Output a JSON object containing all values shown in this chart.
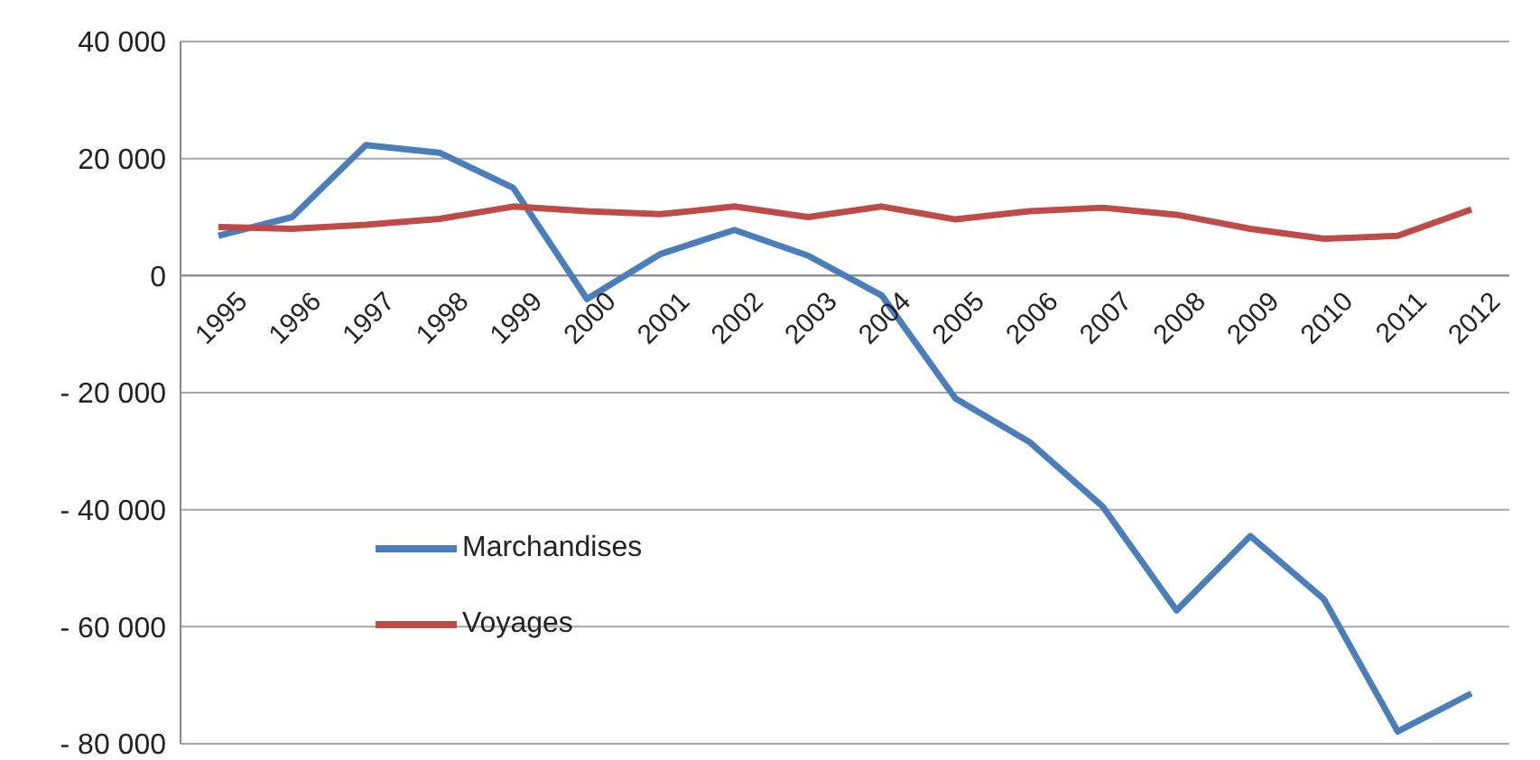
{
  "chart_data": {
    "type": "line",
    "categories": [
      "1995",
      "1996",
      "1997",
      "1998",
      "1999",
      "2000",
      "2001",
      "2002",
      "2003",
      "2004",
      "2005",
      "2006",
      "2007",
      "2008",
      "2009",
      "2010",
      "2011",
      "2012"
    ],
    "series": [
      {
        "name": "Marchandises",
        "color": "#4a7ebb",
        "values": [
          6800,
          10000,
          22300,
          21000,
          15000,
          -4000,
          3700,
          7800,
          3400,
          -3400,
          -21000,
          -28400,
          -39500,
          -57200,
          -44500,
          -55300,
          -77900,
          -71400
        ]
      },
      {
        "name": "Voyages",
        "color": "#be4b48",
        "values": [
          8300,
          8000,
          8700,
          9700,
          11800,
          11000,
          10500,
          11800,
          10000,
          11800,
          9600,
          11000,
          11600,
          10400,
          8000,
          6300,
          6800,
          11300
        ]
      }
    ],
    "ylim": [
      -80000,
      40000
    ],
    "yticks": [
      {
        "value": -80000,
        "label": "- 80 000"
      },
      {
        "value": -60000,
        "label": "- 60 000"
      },
      {
        "value": -40000,
        "label": "- 40 000"
      },
      {
        "value": -20000,
        "label": "- 20 000"
      },
      {
        "value": 0,
        "label": "0"
      },
      {
        "value": 20000,
        "label": "20 000"
      },
      {
        "value": 40000,
        "label": "40 000"
      }
    ],
    "grid": "y",
    "legend": "bottom left",
    "marker": "none",
    "line_style": "solid"
  }
}
